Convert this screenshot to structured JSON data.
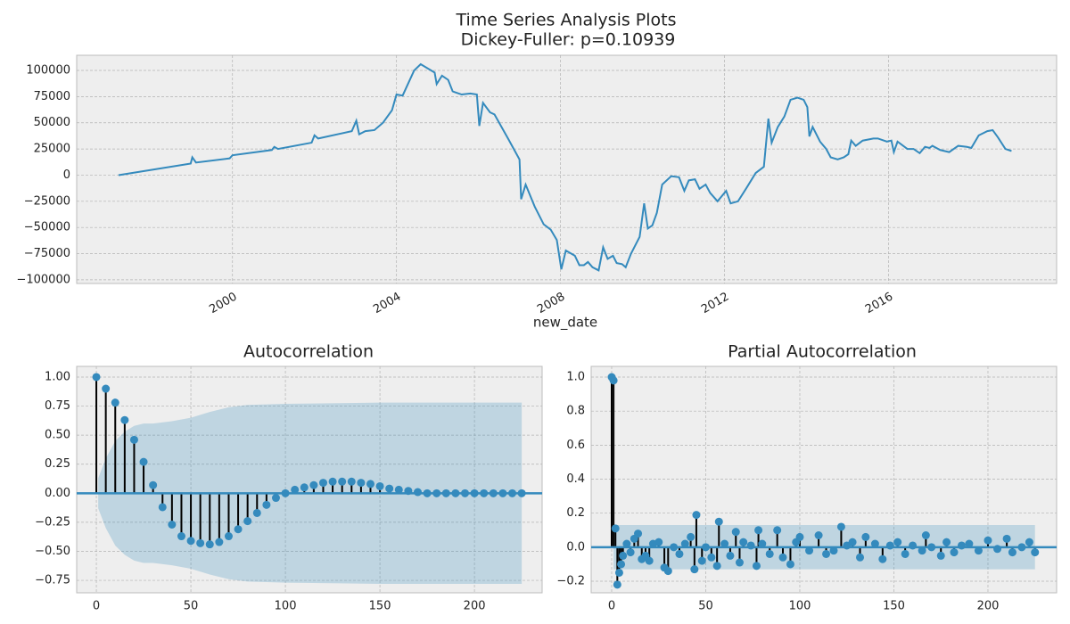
{
  "chart_data": [
    {
      "type": "line",
      "title": "Time Series Analysis Plots",
      "subtitle": "Dickey-Fuller: p=0.10939",
      "xlabel": "new_date",
      "color": "#348abd",
      "grid": true,
      "x": [
        1997.22,
        1998.98,
        1999.02,
        1999.11,
        1999.93,
        2000.0,
        2000.96,
        2001.02,
        2001.11,
        2001.93,
        2002.0,
        2002.09,
        2002.91,
        2003.02,
        2003.09,
        2003.24,
        2003.46,
        2003.67,
        2003.89,
        2004.0,
        2004.15,
        2004.43,
        2004.59,
        2004.93,
        2004.98,
        2005.11,
        2005.26,
        2005.37,
        2005.59,
        2005.8,
        2005.96,
        2006.02,
        2006.11,
        2006.28,
        2006.39,
        2006.72,
        2006.93,
        2007.0,
        2007.04,
        2007.15,
        2007.37,
        2007.59,
        2007.76,
        2007.91,
        2008.02,
        2008.13,
        2008.35,
        2008.46,
        2008.57,
        2008.67,
        2008.78,
        2008.93,
        2009.04,
        2009.15,
        2009.28,
        2009.37,
        2009.5,
        2009.59,
        2009.72,
        2009.93,
        2010.04,
        2010.13,
        2010.24,
        2010.35,
        2010.48,
        2010.7,
        2010.89,
        2011.02,
        2011.13,
        2011.28,
        2011.39,
        2011.54,
        2011.65,
        2011.83,
        2012.04,
        2012.15,
        2012.33,
        2012.54,
        2012.76,
        2012.96,
        2013.07,
        2013.15,
        2013.3,
        2013.46,
        2013.61,
        2013.78,
        2013.93,
        2014.02,
        2014.07,
        2014.15,
        2014.33,
        2014.48,
        2014.59,
        2014.76,
        2014.91,
        2015.02,
        2015.09,
        2015.2,
        2015.37,
        2015.63,
        2015.74,
        2015.96,
        2016.07,
        2016.13,
        2016.22,
        2016.46,
        2016.61,
        2016.76,
        2016.89,
        2017.0,
        2017.07,
        2017.26,
        2017.48,
        2017.7,
        2017.91,
        2018.02,
        2018.2,
        2018.41,
        2018.54,
        2018.67,
        2018.85,
        2019.0
      ],
      "values": [
        0,
        11000,
        17000,
        12000,
        16000,
        19000,
        24000,
        27000,
        25000,
        31000,
        38000,
        35000,
        42000,
        52000,
        39000,
        42000,
        43000,
        50000,
        62000,
        77000,
        76000,
        100000,
        106000,
        98000,
        87000,
        95000,
        91000,
        80000,
        77000,
        78000,
        77000,
        47000,
        69000,
        60000,
        58000,
        35000,
        20000,
        15000,
        -23000,
        -9000,
        -30000,
        -47000,
        -52000,
        -62000,
        -90000,
        -72000,
        -77000,
        -86000,
        -86000,
        -83000,
        -88000,
        -91000,
        -69000,
        -80000,
        -77000,
        -84000,
        -85000,
        -88000,
        -75000,
        -59000,
        -27000,
        -51000,
        -48000,
        -36000,
        -9000,
        -1000,
        -2000,
        -15000,
        -5000,
        -4000,
        -13000,
        -9000,
        -17000,
        -25000,
        -15000,
        -27000,
        -25000,
        -12000,
        2000,
        8000,
        54000,
        31000,
        46000,
        56000,
        72000,
        74000,
        72000,
        65000,
        37000,
        46000,
        32000,
        25000,
        17000,
        15000,
        17000,
        20000,
        33000,
        28000,
        33000,
        35000,
        35000,
        32000,
        33000,
        22000,
        32000,
        25000,
        25000,
        21000,
        27000,
        26000,
        28000,
        24000,
        22000,
        28000,
        27000,
        26000,
        38000,
        42000,
        43000,
        36000,
        25000,
        23000
      ],
      "xlim": [
        1996.2,
        2020.1
      ],
      "xticks": [
        2000,
        2004,
        2008,
        2012,
        2016
      ],
      "ylim": [
        -103500,
        114500
      ],
      "yticks": [
        {
          "value": -100000,
          "label": "−100000"
        },
        {
          "value": -75000,
          "label": "−75000"
        },
        {
          "value": -50000,
          "label": "−50000"
        },
        {
          "value": -25000,
          "label": "−25000"
        },
        0,
        25000,
        50000,
        75000,
        100000
      ]
    },
    {
      "type": "stem",
      "title": "Autocorrelation",
      "color": "#348abd",
      "grid": true,
      "x": [
        0,
        5,
        10,
        15,
        20,
        25,
        30,
        35,
        40,
        45,
        50,
        55,
        60,
        65,
        70,
        75,
        80,
        85,
        90,
        95,
        100,
        105,
        110,
        115,
        120,
        125,
        130,
        135,
        140,
        145,
        150,
        155,
        160,
        165,
        170,
        175,
        180,
        185,
        190,
        195,
        200,
        205,
        210,
        215,
        220,
        225
      ],
      "values": [
        1.0,
        0.9,
        0.78,
        0.63,
        0.46,
        0.27,
        0.07,
        -0.12,
        -0.27,
        -0.37,
        -0.41,
        -0.43,
        -0.44,
        -0.42,
        -0.37,
        -0.31,
        -0.24,
        -0.17,
        -0.1,
        -0.04,
        0.0,
        0.03,
        0.05,
        0.07,
        0.09,
        0.1,
        0.1,
        0.1,
        0.09,
        0.08,
        0.06,
        0.04,
        0.03,
        0.02,
        0.01,
        0.0,
        0.0,
        0.0,
        0.0,
        0.0,
        0.0,
        0.0,
        0.0,
        0.0,
        0.0,
        0.0
      ],
      "band": {
        "x": [
          1,
          5,
          10,
          15,
          20,
          25,
          30,
          40,
          50,
          60,
          70,
          80,
          100,
          150,
          225
        ],
        "upper": [
          0.13,
          0.3,
          0.45,
          0.53,
          0.58,
          0.6,
          0.6,
          0.62,
          0.65,
          0.7,
          0.74,
          0.76,
          0.77,
          0.78,
          0.78
        ],
        "lower": [
          -0.13,
          -0.3,
          -0.45,
          -0.53,
          -0.58,
          -0.6,
          -0.6,
          -0.62,
          -0.65,
          -0.7,
          -0.74,
          -0.76,
          -0.77,
          -0.78,
          -0.78
        ]
      },
      "xlim": [
        -10.4,
        235.8
      ],
      "xticks": [
        0,
        50,
        100,
        150,
        200
      ],
      "ylim": [
        -0.857,
        1.092
      ],
      "yticks": [
        {
          "value": -0.75,
          "label": "−0.75"
        },
        {
          "value": -0.5,
          "label": "−0.50"
        },
        {
          "value": -0.25,
          "label": "−0.25"
        },
        {
          "value": 0,
          "label": "0.00"
        },
        0.25,
        {
          "value": 0.5,
          "label": "0.50"
        },
        0.75,
        {
          "value": 1,
          "label": "1.00"
        }
      ]
    },
    {
      "type": "stem",
      "title": "Partial Autocorrelation",
      "color": "#348abd",
      "grid": true,
      "x": [
        0,
        1,
        2,
        3,
        4,
        5,
        6,
        8,
        10,
        12,
        14,
        16,
        18,
        20,
        22,
        25,
        28,
        30,
        33,
        36,
        39,
        42,
        44,
        45,
        48,
        50,
        53,
        56,
        57,
        60,
        63,
        66,
        68,
        70,
        74,
        77,
        78,
        80,
        84,
        88,
        91,
        95,
        98,
        100,
        105,
        110,
        114,
        118,
        122,
        125,
        128,
        132,
        135,
        140,
        144,
        148,
        152,
        156,
        160,
        165,
        167,
        170,
        175,
        178,
        182,
        186,
        190,
        195,
        200,
        205,
        210,
        213,
        218,
        222,
        225
      ],
      "values": [
        1.0,
        0.98,
        0.11,
        -0.22,
        -0.15,
        -0.1,
        -0.05,
        0.02,
        -0.03,
        0.05,
        0.08,
        -0.07,
        -0.05,
        -0.08,
        0.02,
        0.03,
        -0.12,
        -0.14,
        0.0,
        -0.04,
        0.02,
        0.06,
        -0.13,
        0.19,
        -0.08,
        0.0,
        -0.06,
        -0.11,
        0.15,
        0.02,
        -0.05,
        0.09,
        -0.09,
        0.03,
        0.01,
        -0.11,
        0.1,
        0.02,
        -0.04,
        0.1,
        -0.06,
        -0.1,
        0.03,
        0.06,
        -0.02,
        0.07,
        -0.04,
        -0.02,
        0.12,
        0.01,
        0.03,
        -0.06,
        0.06,
        0.02,
        -0.07,
        0.01,
        0.03,
        -0.04,
        0.01,
        -0.02,
        0.07,
        0.0,
        -0.05,
        0.03,
        -0.03,
        0.01,
        0.02,
        -0.02,
        0.04,
        -0.01,
        0.05,
        -0.03,
        0.0,
        0.03,
        -0.03
      ],
      "band": {
        "x": [
          1,
          225
        ],
        "upper": [
          0.13,
          0.13
        ],
        "lower": [
          -0.13,
          -0.13
        ]
      },
      "xlim": [
        -10.9,
        236.5
      ],
      "xticks": [
        0,
        50,
        100,
        150,
        200
      ],
      "ylim": [
        -0.268,
        1.063
      ],
      "yticks": [
        {
          "value": -0.2,
          "label": "−0.2"
        },
        {
          "value": 0,
          "label": "0.0"
        },
        0.2,
        0.4,
        0.6,
        0.8,
        {
          "value": 1,
          "label": "1.0"
        }
      ]
    }
  ]
}
